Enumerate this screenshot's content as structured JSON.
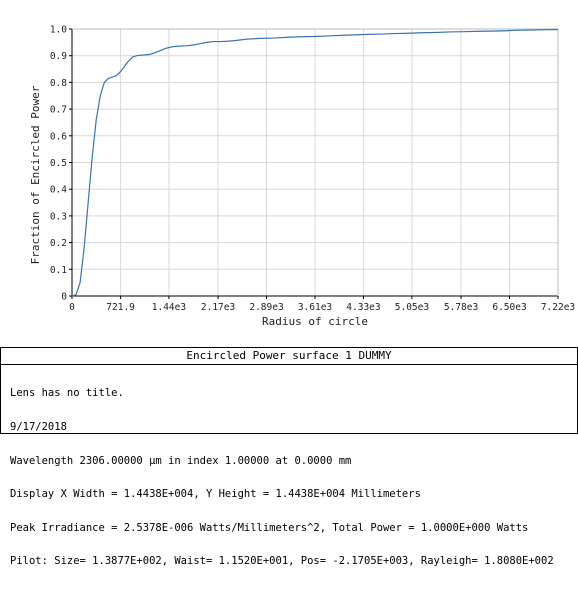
{
  "chart_data": {
    "type": "line",
    "xlabel": "Radius of circle",
    "ylabel": "Fraction of Encircled Power",
    "xlim": [
      0,
      7220
    ],
    "ylim": [
      0,
      1.0
    ],
    "x_ticks": [
      0,
      721.9,
      1440,
      2170,
      2890,
      3610,
      4330,
      5050,
      5780,
      6500,
      7220
    ],
    "x_tick_labels": [
      "0",
      "721.9",
      "1.44e3",
      "2.17e3",
      "2.89e3",
      "3.61e3",
      "4.33e3",
      "5.05e3",
      "5.78e3",
      "6.50e3",
      "7.22e3"
    ],
    "y_ticks": [
      0,
      0.1,
      0.2,
      0.3,
      0.4,
      0.5,
      0.6,
      0.7,
      0.8,
      0.9,
      1.0
    ],
    "y_tick_labels": [
      "0",
      "0.1",
      "0.2",
      "0.3",
      "0.4",
      "0.5",
      "0.6",
      "0.7",
      "0.8",
      "0.9",
      "1.0"
    ],
    "grid": true,
    "line_color": "#3a73b0",
    "series": [
      {
        "x": [
          0,
          60,
          120,
          180,
          240,
          300,
          360,
          420,
          480,
          540,
          600,
          660,
          720,
          780,
          840,
          900,
          960,
          1020,
          1080,
          1140,
          1200,
          1300,
          1400,
          1500,
          1600,
          1700,
          1800,
          1900,
          2000,
          2100,
          2200,
          2300,
          2400,
          2600,
          2800,
          3000,
          3200,
          3400,
          3600,
          3800,
          4000,
          4200,
          4400,
          4600,
          4800,
          5000,
          5200,
          5400,
          5600,
          5800,
          6000,
          6200,
          6400,
          6600,
          6800,
          7000,
          7220
        ],
        "y": [
          0.0,
          0.005,
          0.05,
          0.18,
          0.35,
          0.52,
          0.66,
          0.75,
          0.8,
          0.815,
          0.82,
          0.825,
          0.84,
          0.86,
          0.88,
          0.895,
          0.9,
          0.902,
          0.903,
          0.904,
          0.908,
          0.918,
          0.928,
          0.934,
          0.936,
          0.937,
          0.94,
          0.945,
          0.95,
          0.953,
          0.953,
          0.954,
          0.956,
          0.962,
          0.965,
          0.966,
          0.969,
          0.971,
          0.972,
          0.974,
          0.976,
          0.978,
          0.98,
          0.981,
          0.983,
          0.984,
          0.986,
          0.987,
          0.989,
          0.99,
          0.991,
          0.992,
          0.993,
          0.995,
          0.996,
          0.997,
          0.998
        ]
      }
    ]
  },
  "footer": {
    "title": "Encircled Power surface 1 DUMMY",
    "lines": [
      "Lens has no title.",
      "9/17/2018",
      "Wavelength 2306.00000 µm in index 1.00000 at 0.0000 mm",
      "Display X Width = 1.4438E+004, Y Height = 1.4438E+004 Millimeters",
      "Peak Irradiance = 2.5378E-006 Watts/Millimeters^2, Total Power = 1.0000E+000 Watts",
      "Pilot: Size= 1.3877E+002, Waist= 1.1520E+001, Pos= -2.1705E+003, Rayleigh= 1.8080E+002"
    ]
  }
}
